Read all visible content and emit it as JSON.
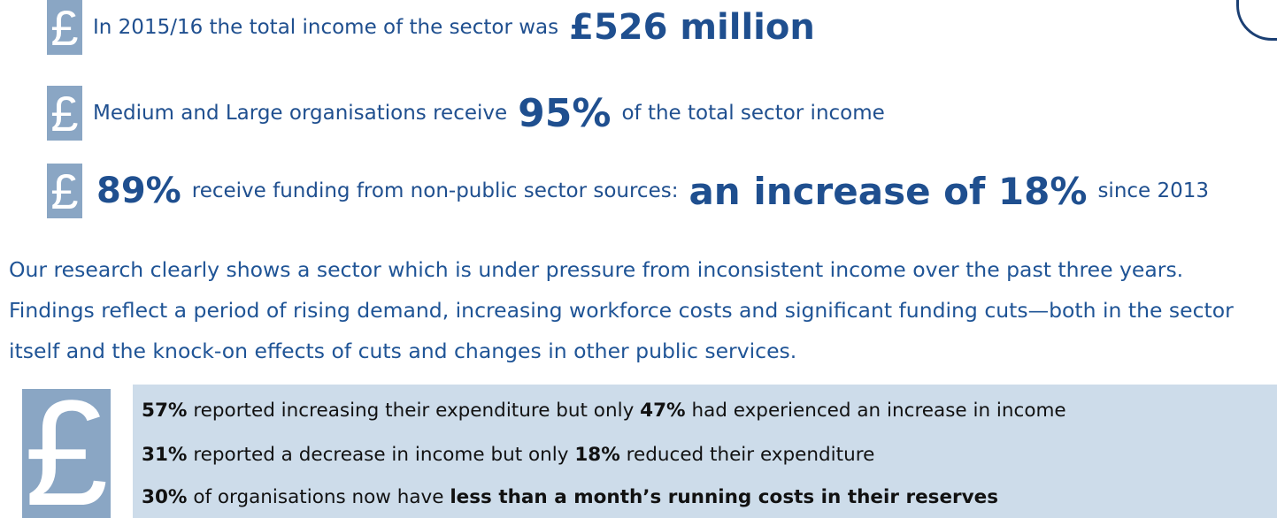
{
  "icon_symbol": "£",
  "highlights": [
    [
      "In 2015/16 the total income of the sector was",
      "£526 million"
    ],
    [
      "Medium and Large organisations receive",
      "95%",
      "of the total sector income"
    ],
    [
      "89%",
      "receive funding from non-public sector sources:",
      "an increase of 18%",
      "since 2013"
    ]
  ],
  "paragraph": "Our research clearly shows a sector which is under pressure from inconsistent income over the past three years. Findings reflect a period of rising demand, increasing workforce costs and significant funding  cuts—both in the sector itself and the knock-on effects of cuts and changes in other public services.",
  "findings": [
    [
      "57%",
      "reported increasing their expenditure but only",
      "47%",
      "had experienced an increase in income"
    ],
    [
      "31%",
      "reported a decrease in income but only",
      "18%",
      "reduced their expenditure"
    ],
    [
      "30%",
      "of organisations now have",
      "less than a month’s running costs in their reserves"
    ]
  ]
}
